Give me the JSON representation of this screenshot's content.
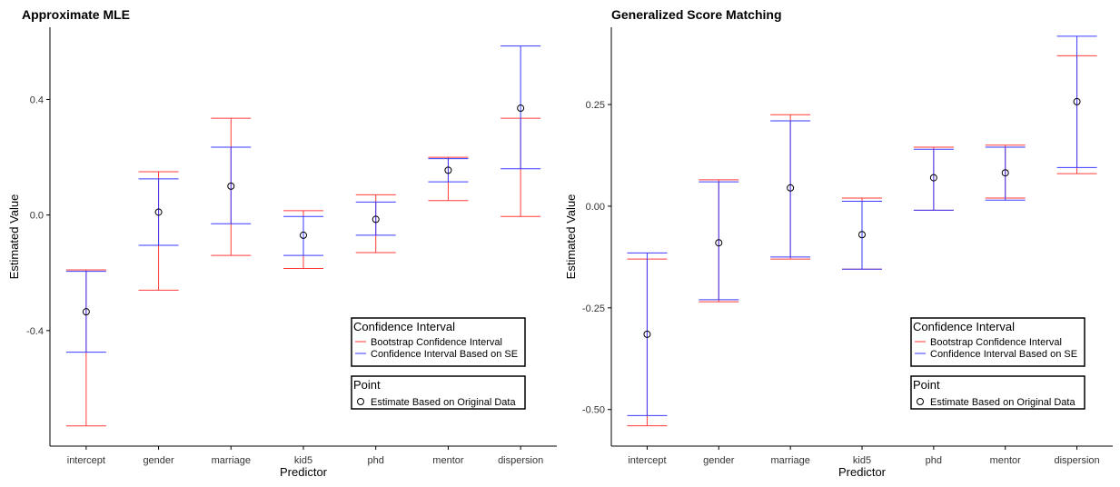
{
  "colors": {
    "bootstrap": "#ff3b3b",
    "se": "#3a3aff",
    "point": "#000000",
    "axis": "#000000",
    "text": "#000000"
  },
  "legend": {
    "ci_title": "Confidence Interval",
    "ci_items": [
      "Bootstrap Confidence Interval",
      "Confidence Interval Based on SE"
    ],
    "point_title": "Point",
    "point_items": [
      "Estimate Based on Original Data"
    ],
    "placement": "bottom-right"
  },
  "chart_data": [
    {
      "type": "errorbar",
      "title": "Approximate MLE",
      "xlabel": "Predictor",
      "ylabel": "Estimated Value",
      "categories": [
        "intercept",
        "gender",
        "marriage",
        "kid5",
        "phd",
        "mentor",
        "dispersion"
      ],
      "ylim": [
        -0.8,
        0.65
      ],
      "yticks": [
        -0.4,
        0.0,
        0.4
      ],
      "ytick_labels": [
        "-0.4",
        "0.0",
        "0.4"
      ],
      "grid": false,
      "estimate": [
        -0.335,
        0.01,
        0.1,
        -0.07,
        -0.015,
        0.155,
        0.37
      ],
      "bootstrap": {
        "lower": [
          -0.73,
          -0.26,
          -0.14,
          -0.185,
          -0.13,
          0.05,
          -0.005
        ],
        "upper": [
          -0.19,
          0.15,
          0.335,
          0.015,
          0.07,
          0.2,
          0.335
        ]
      },
      "se": {
        "lower": [
          -0.475,
          -0.105,
          -0.03,
          -0.14,
          -0.07,
          0.115,
          0.16
        ],
        "upper": [
          -0.195,
          0.125,
          0.235,
          -0.005,
          0.045,
          0.195,
          0.585
        ]
      }
    },
    {
      "type": "errorbar",
      "title": "Generalized Score Matching",
      "xlabel": "Predictor",
      "ylabel": "Estimated Value",
      "categories": [
        "intercept",
        "gender",
        "marriage",
        "kid5",
        "phd",
        "mentor",
        "dispersion"
      ],
      "ylim": [
        -0.59,
        0.44
      ],
      "yticks": [
        -0.5,
        -0.25,
        0.0,
        0.25
      ],
      "ytick_labels": [
        "-0.50",
        "-0.25",
        "0.00",
        "0.25"
      ],
      "grid": false,
      "estimate": [
        -0.315,
        -0.09,
        0.045,
        -0.07,
        0.07,
        0.082,
        0.257
      ],
      "bootstrap": {
        "lower": [
          -0.54,
          -0.235,
          -0.13,
          -0.155,
          -0.01,
          0.02,
          0.08
        ],
        "upper": [
          -0.13,
          0.065,
          0.225,
          0.02,
          0.145,
          0.15,
          0.37
        ]
      },
      "se": {
        "lower": [
          -0.515,
          -0.23,
          -0.125,
          -0.155,
          -0.01,
          0.015,
          0.095
        ],
        "upper": [
          -0.115,
          0.06,
          0.21,
          0.012,
          0.14,
          0.145,
          0.418
        ]
      }
    }
  ]
}
